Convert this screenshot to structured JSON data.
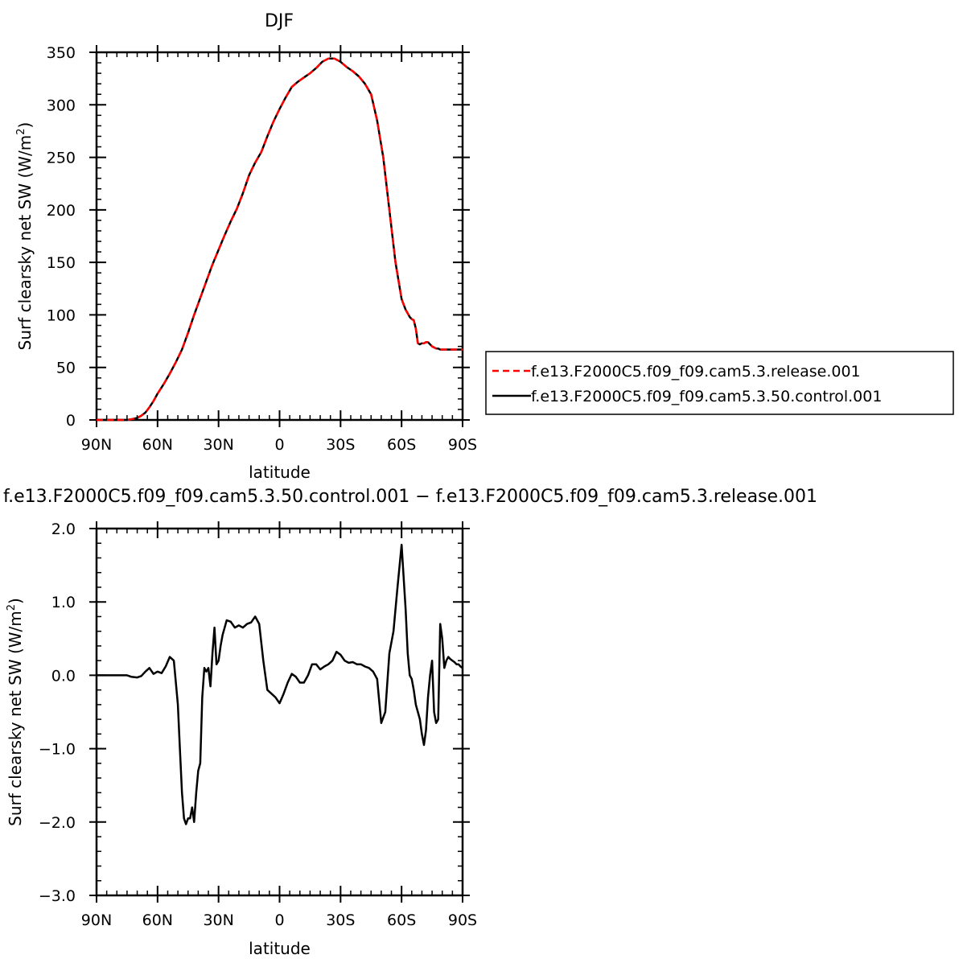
{
  "chart_data": [
    {
      "type": "line",
      "title": "DJF",
      "xlabel": "latitude",
      "ylabel": "Surf clearsky net SW (W/m",
      "ylabel_sup": "2",
      "ylabel_tail": ")",
      "xlim": [
        90,
        -90
      ],
      "ylim": [
        0,
        350
      ],
      "xticks": [
        {
          "v": 90,
          "label": "90N"
        },
        {
          "v": 60,
          "label": "60N"
        },
        {
          "v": 30,
          "label": "30N"
        },
        {
          "v": 0,
          "label": "0"
        },
        {
          "v": -30,
          "label": "30S"
        },
        {
          "v": -60,
          "label": "60S"
        },
        {
          "v": -90,
          "label": "90S"
        }
      ],
      "yticks": [
        {
          "v": 0,
          "label": "0"
        },
        {
          "v": 50,
          "label": "50"
        },
        {
          "v": 100,
          "label": "100"
        },
        {
          "v": 150,
          "label": "150"
        },
        {
          "v": 200,
          "label": "200"
        },
        {
          "v": 250,
          "label": "250"
        },
        {
          "v": 300,
          "label": "300"
        },
        {
          "v": 350,
          "label": "350"
        }
      ],
      "legend_position": "right",
      "series": [
        {
          "name": "f.e13.F2000C5.f09_f09.cam5.3.release.001",
          "color": "#ff0000",
          "dash": "dashed",
          "x": [
            90,
            80,
            75,
            72,
            70,
            68,
            66,
            64,
            62,
            60,
            57,
            54,
            51,
            48,
            45,
            42,
            39,
            36,
            33,
            30,
            27,
            24,
            21,
            18,
            15,
            12,
            9,
            6,
            3,
            0,
            -3,
            -6,
            -9,
            -12,
            -15,
            -18,
            -21,
            -24,
            -27,
            -30,
            -33,
            -36,
            -39,
            -42,
            -45,
            -48,
            -51,
            -54,
            -57,
            -60,
            -62,
            -64,
            -65,
            -66,
            -67,
            -68,
            -69,
            -70,
            -71,
            -72,
            -73,
            -74,
            -75,
            -76,
            -77,
            -78,
            -79,
            -80,
            -81,
            -82,
            -83,
            -84,
            -85,
            -86,
            -87,
            -88,
            -89,
            -90
          ],
          "values": [
            0,
            0,
            0,
            1,
            2,
            4,
            7,
            12,
            18,
            25,
            34,
            44,
            55,
            67,
            83,
            100,
            116,
            132,
            148,
            162,
            176,
            189,
            201,
            216,
            233,
            245,
            255,
            270,
            284,
            296,
            307,
            317,
            322,
            326,
            330,
            335,
            341,
            344,
            344,
            341,
            336,
            332,
            327,
            320,
            310,
            285,
            250,
            200,
            150,
            115,
            105,
            98,
            96,
            95,
            87,
            73,
            72,
            73,
            73,
            74,
            74,
            72,
            70,
            69,
            68,
            68,
            67,
            67,
            67,
            67,
            67,
            67,
            67,
            67,
            67,
            67,
            67,
            67
          ]
        },
        {
          "name": "f.e13.F2000C5.f09_f09.cam5.3.50.control.001",
          "color": "#000000",
          "dash": "solid",
          "x": [
            90,
            80,
            75,
            72,
            70,
            68,
            66,
            64,
            62,
            60,
            57,
            54,
            51,
            48,
            45,
            42,
            39,
            36,
            33,
            30,
            27,
            24,
            21,
            18,
            15,
            12,
            9,
            6,
            3,
            0,
            -3,
            -6,
            -9,
            -12,
            -15,
            -18,
            -21,
            -24,
            -27,
            -30,
            -33,
            -36,
            -39,
            -42,
            -45,
            -48,
            -51,
            -54,
            -57,
            -60,
            -62,
            -64,
            -65,
            -66,
            -67,
            -68,
            -69,
            -70,
            -71,
            -72,
            -73,
            -74,
            -75,
            -76,
            -77,
            -78,
            -79,
            -80,
            -81,
            -82,
            -83,
            -84,
            -85,
            -86,
            -87,
            -88,
            -89,
            -90
          ],
          "values": [
            0,
            0,
            0,
            1,
            2,
            4,
            7,
            12,
            18,
            25,
            34,
            44,
            55,
            67,
            83,
            100,
            116,
            132,
            148,
            162,
            176,
            189,
            201,
            216,
            233,
            245,
            255,
            270,
            284,
            296,
            307,
            317,
            322,
            326,
            330,
            335,
            341,
            344,
            344,
            341,
            336,
            332,
            327,
            320,
            310,
            285,
            250,
            200,
            150,
            115,
            105,
            98,
            96,
            95,
            87,
            73,
            72,
            73,
            73,
            74,
            74,
            72,
            70,
            69,
            68,
            68,
            67,
            67,
            67,
            67,
            67,
            67,
            67,
            67,
            67,
            67,
            67,
            67
          ]
        }
      ]
    },
    {
      "type": "line",
      "title": "f.e13.F2000C5.f09_f09.cam5.3.50.control.001 − f.e13.F2000C5.f09_f09.cam5.3.release.001",
      "xlabel": "latitude",
      "ylabel": "Surf clearsky net SW (W/m",
      "ylabel_sup": "2",
      "ylabel_tail": ")",
      "xlim": [
        90,
        -90
      ],
      "ylim": [
        -3.0,
        2.0
      ],
      "xticks": [
        {
          "v": 90,
          "label": "90N"
        },
        {
          "v": 60,
          "label": "60N"
        },
        {
          "v": 30,
          "label": "30N"
        },
        {
          "v": 0,
          "label": "0"
        },
        {
          "v": -30,
          "label": "30S"
        },
        {
          "v": -60,
          "label": "60S"
        },
        {
          "v": -90,
          "label": "90S"
        }
      ],
      "yticks": [
        {
          "v": -3,
          "label": "−3.0"
        },
        {
          "v": -2,
          "label": "−2.0"
        },
        {
          "v": -1,
          "label": "−1.0"
        },
        {
          "v": 0,
          "label": "0.0"
        },
        {
          "v": 1,
          "label": "1.0"
        },
        {
          "v": 2,
          "label": "2.0"
        }
      ],
      "series": [
        {
          "color": "#000000",
          "dash": "solid",
          "x": [
            90,
            75,
            73,
            70,
            68,
            66,
            64,
            62,
            60,
            58,
            56,
            54,
            52,
            51,
            50,
            49,
            48,
            47,
            46,
            45,
            44,
            43,
            42,
            41,
            40,
            39,
            38,
            37,
            36,
            35,
            34,
            33,
            32,
            31,
            30,
            29,
            28,
            26,
            24,
            22,
            20,
            18,
            16,
            14,
            12,
            10,
            8,
            6,
            4,
            2,
            0,
            -2,
            -4,
            -6,
            -8,
            -10,
            -12,
            -14,
            -16,
            -18,
            -20,
            -22,
            -24,
            -26,
            -28,
            -30,
            -32,
            -34,
            -36,
            -38,
            -40,
            -42,
            -44,
            -46,
            -48,
            -50,
            -52,
            -54,
            -56,
            -58,
            -60,
            -62,
            -63,
            -64,
            -65,
            -66,
            -67,
            -68,
            -69,
            -70,
            -71,
            -72,
            -73,
            -74,
            -75,
            -76,
            -77,
            -78,
            -79,
            -80,
            -81,
            -82,
            -83,
            -84,
            -85,
            -86,
            -87,
            -88,
            -89,
            -90
          ],
          "values": [
            0,
            0,
            -0.02,
            -0.03,
            -0.01,
            0.05,
            0.1,
            0.02,
            0.05,
            0.03,
            0.12,
            0.25,
            0.2,
            -0.1,
            -0.4,
            -1.0,
            -1.6,
            -1.95,
            -2.03,
            -1.95,
            -1.95,
            -1.8,
            -2.0,
            -1.6,
            -1.3,
            -1.2,
            -0.3,
            0.1,
            0.05,
            0.1,
            -0.15,
            0.3,
            0.65,
            0.15,
            0.2,
            0.4,
            0.55,
            0.75,
            0.73,
            0.65,
            0.68,
            0.65,
            0.7,
            0.72,
            0.8,
            0.7,
            0.2,
            -0.2,
            -0.25,
            -0.3,
            -0.38,
            -0.25,
            -0.1,
            0.02,
            -0.02,
            -0.1,
            -0.1,
            0.0,
            0.15,
            0.15,
            0.08,
            0.12,
            0.15,
            0.2,
            0.32,
            0.28,
            0.2,
            0.17,
            0.18,
            0.15,
            0.15,
            0.12,
            0.1,
            0.05,
            -0.05,
            -0.65,
            -0.5,
            0.3,
            0.6,
            1.2,
            1.78,
            0.9,
            0.3,
            0.0,
            -0.05,
            -0.2,
            -0.4,
            -0.5,
            -0.6,
            -0.8,
            -0.95,
            -0.75,
            -0.3,
            0.0,
            0.2,
            -0.5,
            -0.65,
            -0.6,
            0.7,
            0.5,
            0.1,
            0.2,
            0.25,
            0.22,
            0.2,
            0.18,
            0.15,
            0.15,
            0.12,
            0.1
          ]
        }
      ]
    }
  ]
}
